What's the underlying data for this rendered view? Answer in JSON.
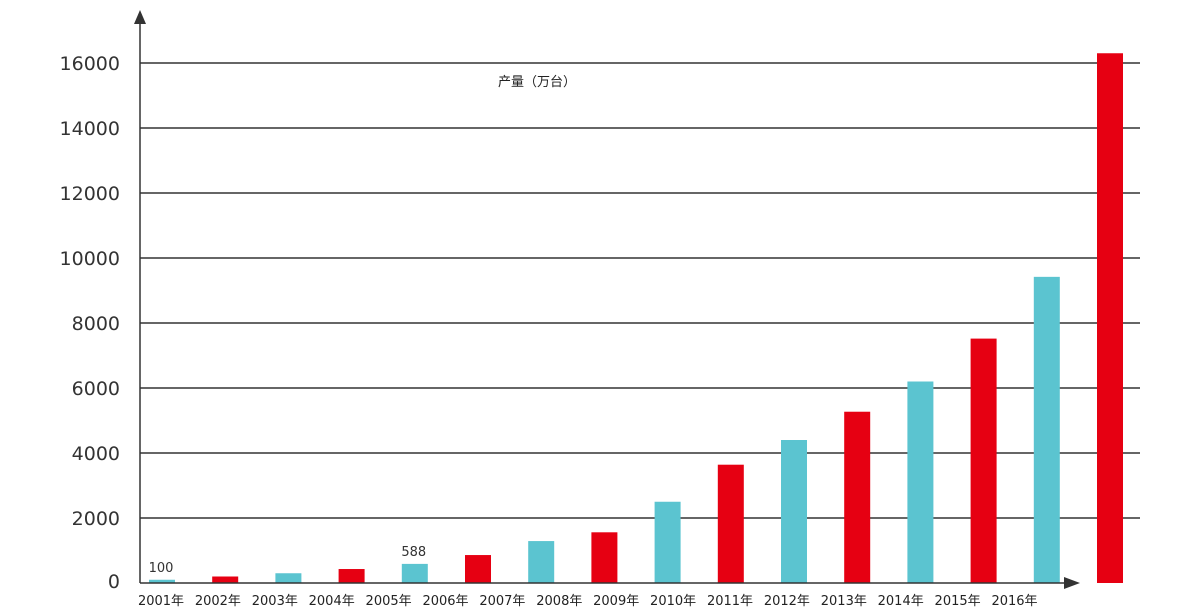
{
  "chart_data": {
    "type": "bar",
    "title": "",
    "xlabel": "",
    "ylabel": "产量（万台）",
    "ylim": [
      0,
      16000
    ],
    "grid": true,
    "yticks": [
      "0",
      "2000",
      "4000",
      "6000",
      "8000",
      "10000",
      "12000",
      "14000",
      "16000"
    ],
    "categories": [
      "2001年",
      "2002年",
      "2003年",
      "2004年",
      "2005年",
      "2006年",
      "2007年",
      "2008年",
      "2009年",
      "2010年",
      "2011年",
      "2012年",
      "2013年",
      "2014年",
      "2015年",
      "2016年"
    ],
    "values": [
      100,
      200,
      300,
      430,
      588,
      860,
      1290,
      1560,
      2500,
      3640,
      4400,
      5270,
      6200,
      7520,
      9420,
      16300
    ],
    "data_labels": [
      {
        "index": 0,
        "text": "100"
      },
      {
        "index": 4,
        "text": "588"
      }
    ],
    "colors": {
      "alternating": [
        "#5bc4d0",
        "#e60012",
        "#5bc4d0",
        "#e60012",
        "#5bc4d0",
        "#e60012",
        "#5bc4d0",
        "#e60012",
        "#5bc4d0",
        "#e60012",
        "#5bc4d0",
        "#e60012",
        "#5bc4d0",
        "#e60012",
        "#5bc4d0",
        "#e60012"
      ],
      "grid": "#333333",
      "axis": "#333333"
    }
  }
}
